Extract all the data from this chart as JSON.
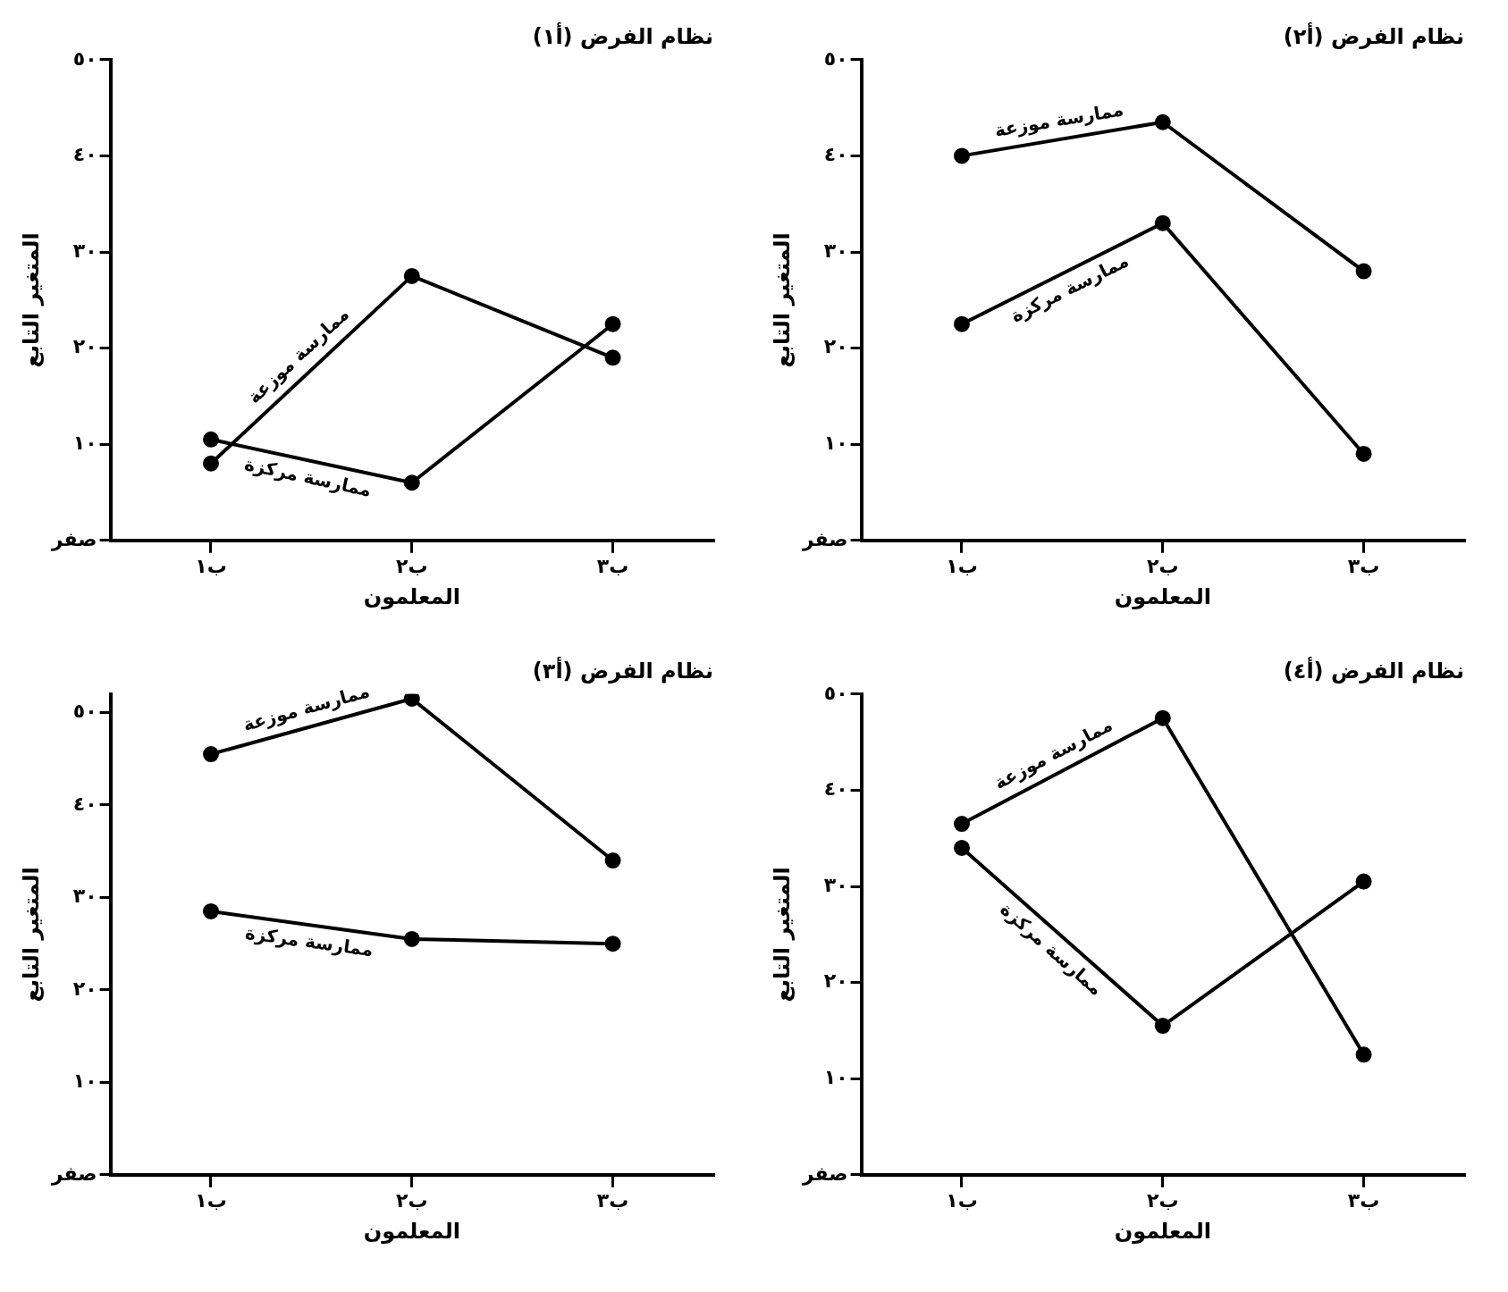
{
  "chart_data": [
    {
      "type": "line",
      "title": "نظام الفرض (أ١)",
      "xlabel": "المعلمون",
      "ylabel": "المتغير التابع",
      "categories": [
        "ب١",
        "ب٢",
        "ب٣"
      ],
      "ylim": [
        0,
        50
      ],
      "yticks": [
        {
          "value": 0,
          "label": "صفر"
        },
        {
          "value": 10,
          "label": "١٠"
        },
        {
          "value": 20,
          "label": "٢٠"
        },
        {
          "value": 30,
          "label": "٣٠"
        },
        {
          "value": 40,
          "label": "٤٠"
        },
        {
          "value": 50,
          "label": "٥٠"
        }
      ],
      "grid": false,
      "legend": false,
      "marker": "circle",
      "line_style": "solid",
      "series": [
        {
          "name": "ممارسة موزعة",
          "color": "#000000",
          "values": [
            8,
            27.5,
            19
          ]
        },
        {
          "name": "ممارسة مركزة",
          "color": "#000000",
          "values": [
            10.5,
            6,
            22.5
          ]
        }
      ]
    },
    {
      "type": "line",
      "title": "نظام الفرض (أ٢)",
      "xlabel": "المعلمون",
      "ylabel": "المتغير التابع",
      "categories": [
        "ب١",
        "ب٢",
        "ب٣"
      ],
      "ylim": [
        0,
        50
      ],
      "yticks": [
        {
          "value": 0,
          "label": "صفر"
        },
        {
          "value": 10,
          "label": "١٠"
        },
        {
          "value": 20,
          "label": "٢٠"
        },
        {
          "value": 30,
          "label": "٣٠"
        },
        {
          "value": 40,
          "label": "٤٠"
        },
        {
          "value": 50,
          "label": "٥٠"
        }
      ],
      "grid": false,
      "legend": false,
      "marker": "circle",
      "line_style": "solid",
      "series": [
        {
          "name": "ممارسة موزعة",
          "color": "#000000",
          "values": [
            40,
            43.5,
            28
          ]
        },
        {
          "name": "ممارسة مركزة",
          "color": "#000000",
          "values": [
            22.5,
            33,
            9
          ]
        }
      ]
    },
    {
      "type": "line",
      "title": "نظام الفرض (أ٣)",
      "xlabel": "المعلمون",
      "ylabel": "المتغير التابع",
      "categories": [
        "ب١",
        "ب٢",
        "ب٣"
      ],
      "ylim": [
        0,
        52
      ],
      "yticks": [
        {
          "value": 0,
          "label": "صفر"
        },
        {
          "value": 10,
          "label": "١٠"
        },
        {
          "value": 20,
          "label": "٢٠"
        },
        {
          "value": 30,
          "label": "٣٠"
        },
        {
          "value": 40,
          "label": "٤٠"
        },
        {
          "value": 50,
          "label": "٥٠"
        }
      ],
      "grid": false,
      "legend": false,
      "marker": "circle",
      "line_style": "solid",
      "series": [
        {
          "name": "ممارسة موزعة",
          "color": "#000000",
          "values": [
            45.5,
            51.5,
            34
          ]
        },
        {
          "name": "ممارسة مركزة",
          "color": "#000000",
          "values": [
            28.5,
            25.5,
            25
          ]
        }
      ]
    },
    {
      "type": "line",
      "title": "نظام الفرض (أ٤)",
      "xlabel": "المعلمون",
      "ylabel": "المتغير التابع",
      "categories": [
        "ب١",
        "ب٢",
        "ب٣"
      ],
      "ylim": [
        0,
        50
      ],
      "yticks": [
        {
          "value": 0,
          "label": "صفر"
        },
        {
          "value": 10,
          "label": "١٠"
        },
        {
          "value": 20,
          "label": "٢٠"
        },
        {
          "value": 30,
          "label": "٣٠"
        },
        {
          "value": 40,
          "label": "٤٠"
        },
        {
          "value": 50,
          "label": "٥٠"
        }
      ],
      "grid": false,
      "legend": false,
      "marker": "circle",
      "line_style": "solid",
      "series": [
        {
          "name": "ممارسة موزعة",
          "color": "#000000",
          "values": [
            36.5,
            47.5,
            12.5
          ]
        },
        {
          "name": "ممارسة مركزة",
          "color": "#000000",
          "values": [
            34,
            15.5,
            30.5
          ]
        }
      ]
    }
  ]
}
